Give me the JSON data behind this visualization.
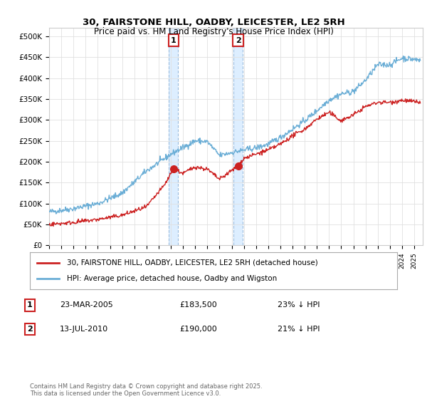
{
  "title": "30, FAIRSTONE HILL, OADBY, LEICESTER, LE2 5RH",
  "subtitle": "Price paid vs. HM Land Registry's House Price Index (HPI)",
  "ylim": [
    0,
    520000
  ],
  "yticks": [
    0,
    50000,
    100000,
    150000,
    200000,
    250000,
    300000,
    350000,
    400000,
    450000,
    500000
  ],
  "ytick_labels": [
    "£0",
    "£50K",
    "£100K",
    "£150K",
    "£200K",
    "£250K",
    "£300K",
    "£350K",
    "£400K",
    "£450K",
    "£500K"
  ],
  "xlim_start": 1995.0,
  "xlim_end": 2025.7,
  "hpi_color": "#6baed6",
  "price_color": "#cc2222",
  "sale1_date": 2005.22,
  "sale1_price": 183500,
  "sale2_date": 2010.53,
  "sale2_price": 190000,
  "sale1_label": "1",
  "sale2_label": "2",
  "shade_color": "#ddeeff",
  "shade_border_color": "#99bbdd",
  "legend_property": "30, FAIRSTONE HILL, OADBY, LEICESTER, LE2 5RH (detached house)",
  "legend_hpi": "HPI: Average price, detached house, Oadby and Wigston",
  "annotation1_date": "23-MAR-2005",
  "annotation1_price": "£183,500",
  "annotation1_hpi": "23% ↓ HPI",
  "annotation2_date": "13-JUL-2010",
  "annotation2_price": "£190,000",
  "annotation2_hpi": "21% ↓ HPI",
  "footer": "Contains HM Land Registry data © Crown copyright and database right 2025.\nThis data is licensed under the Open Government Licence v3.0.",
  "background_color": "#ffffff",
  "grid_color": "#e0e0e0",
  "box_edge_color": "#cc2222"
}
